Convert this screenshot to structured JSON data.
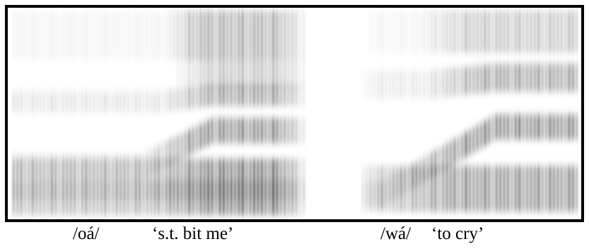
{
  "captions": [
    {
      "transcription": "/oá/",
      "gloss": "‘s.t. bit me’"
    },
    {
      "transcription": "/wá/",
      "gloss": "‘to cry’"
    }
  ]
}
